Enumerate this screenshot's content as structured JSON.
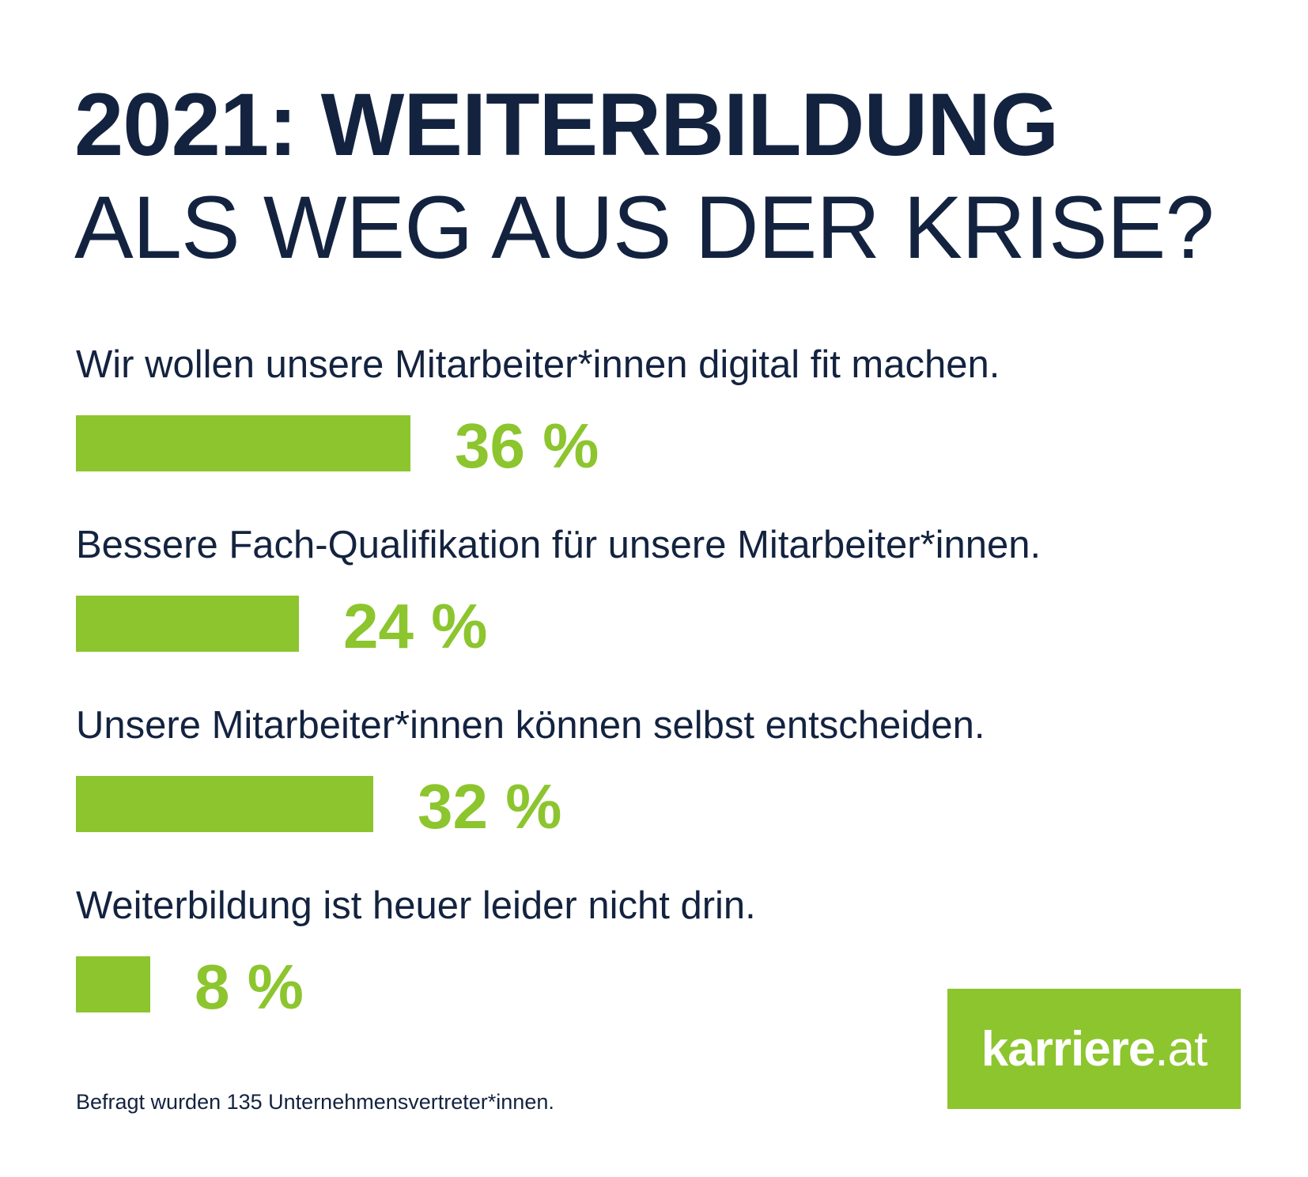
{
  "title_bold": "2021: WEITERBILDUNG",
  "title_light": "ALS WEG AUS DER KRISE?",
  "colors": {
    "text": "#13233f",
    "accent": "#8cc52e"
  },
  "chart_data": {
    "type": "bar",
    "orientation": "horizontal",
    "categories": [
      "Wir wollen unsere Mitarbeiter*innen digital fit machen.",
      "Bessere Fach-Qualifikation für unsere Mitarbeiter*innen.",
      "Unsere Mitarbeiter*innen können selbst entscheiden.",
      "Weiterbildung ist heuer leider nicht drin."
    ],
    "values": [
      36,
      24,
      32,
      8
    ],
    "value_labels": [
      "36 %",
      "24 %",
      "32 %",
      "8 %"
    ],
    "unit": "%",
    "grid": false
  },
  "footnote": "Befragt wurden 135 Unternehmensvertreter*innen.",
  "logo": {
    "name": "karriere",
    "tld": ".at"
  }
}
